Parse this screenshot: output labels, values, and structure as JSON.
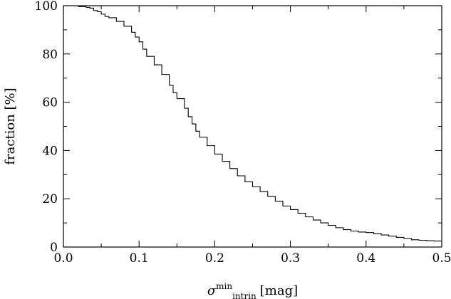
{
  "chart_data": {
    "type": "line",
    "title": "",
    "xlabel_symbol": "σ",
    "xlabel_sup": "min",
    "xlabel_sub": "intrin",
    "xlabel_unit": "[mag]",
    "ylabel": "fraction [%]",
    "xlim": [
      0.0,
      0.5
    ],
    "ylim": [
      0,
      100
    ],
    "xticks": [
      0.0,
      0.1,
      0.2,
      0.3,
      0.4,
      0.5
    ],
    "xtick_labels": [
      "0.0",
      "0.1",
      "0.2",
      "0.3",
      "0.4",
      "0.5"
    ],
    "yticks": [
      0,
      20,
      40,
      60,
      80,
      100
    ],
    "ytick_labels": [
      "0",
      "20",
      "40",
      "60",
      "80",
      "100"
    ],
    "x_minor_step": 0.05,
    "y_minor_step": 10,
    "line_style": "step",
    "grid": false,
    "series": [
      {
        "x": [
          0.0,
          0.01,
          0.02,
          0.03,
          0.035,
          0.04,
          0.045,
          0.05,
          0.055,
          0.06,
          0.07,
          0.08,
          0.09,
          0.095,
          0.1,
          0.105,
          0.11,
          0.12,
          0.13,
          0.14,
          0.145,
          0.15,
          0.16,
          0.165,
          0.17,
          0.175,
          0.18,
          0.19,
          0.2,
          0.21,
          0.22,
          0.23,
          0.24,
          0.25,
          0.26,
          0.27,
          0.28,
          0.29,
          0.3,
          0.31,
          0.32,
          0.33,
          0.34,
          0.35,
          0.36,
          0.37,
          0.38,
          0.39,
          0.4,
          0.41,
          0.42,
          0.43,
          0.44,
          0.45,
          0.46,
          0.47,
          0.48,
          0.49,
          0.5
        ],
        "y": [
          100,
          100,
          99.6,
          99.3,
          99,
          98,
          97.5,
          96.5,
          95.5,
          95,
          93.5,
          91.5,
          89,
          87,
          85,
          82,
          79,
          75.5,
          71.5,
          67,
          64,
          61.5,
          57.5,
          54,
          51,
          48,
          45.5,
          42,
          38.5,
          35.5,
          32.5,
          29.5,
          27,
          25,
          23,
          21,
          19,
          17,
          15.5,
          14,
          12.5,
          11.2,
          10,
          9,
          8,
          7.2,
          6.6,
          6.2,
          6,
          5.5,
          5,
          4.5,
          4,
          3.5,
          3,
          2.8,
          2.6,
          2.5,
          2.5
        ]
      }
    ]
  }
}
